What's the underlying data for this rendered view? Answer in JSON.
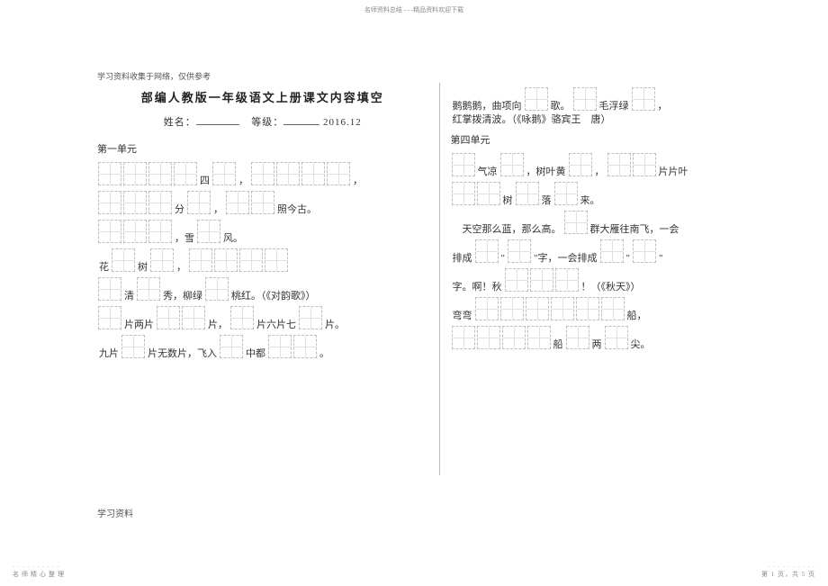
{
  "header": {
    "top_note": "名师资料总结 - - -精品资料欢迎下载"
  },
  "subnote": "学习资料收集于网络，仅供参考",
  "title": "部编人教版一年级语文上册课文内容填空",
  "namebar": {
    "name_label": "姓名：",
    "grade_label": "等级：",
    "date": "2016.12"
  },
  "left": {
    "section": "第一单元",
    "rows": [
      {
        "parts": [
          {
            "t": "box",
            "n": 4
          },
          {
            "t": "txt",
            "v": "四"
          },
          {
            "t": "box",
            "n": 1
          },
          {
            "t": "txt",
            "v": "，"
          },
          {
            "t": "box",
            "n": 4
          },
          {
            "t": "txt",
            "v": "，"
          }
        ]
      },
      {
        "parts": [
          {
            "t": "box",
            "n": 3
          },
          {
            "t": "txt",
            "v": "分"
          },
          {
            "t": "box",
            "n": 1
          },
          {
            "t": "txt",
            "v": "，"
          },
          {
            "t": "box",
            "n": 2
          },
          {
            "t": "txt",
            "v": "照今古。"
          }
        ]
      },
      {
        "parts": [
          {
            "t": "box",
            "n": 3
          },
          {
            "t": "txt",
            "v": "，雪"
          },
          {
            "t": "box",
            "n": 1
          },
          {
            "t": "txt",
            "v": "风。"
          }
        ]
      },
      {
        "parts": [
          {
            "t": "txt",
            "v": "花"
          },
          {
            "t": "box",
            "n": 1
          },
          {
            "t": "txt",
            "v": "树"
          },
          {
            "t": "box",
            "n": 1
          },
          {
            "t": "txt",
            "v": "，"
          },
          {
            "t": "box",
            "n": 4
          }
        ]
      },
      {
        "parts": [
          {
            "t": "box",
            "n": 1
          },
          {
            "t": "txt",
            "v": "清"
          },
          {
            "t": "box",
            "n": 1
          },
          {
            "t": "txt",
            "v": "秀，柳绿"
          },
          {
            "t": "box",
            "n": 1
          },
          {
            "t": "txt",
            "v": "桃红。（《对韵歌》）"
          }
        ]
      },
      {
        "parts": [
          {
            "t": "box",
            "n": 1
          },
          {
            "t": "txt",
            "v": "片两片"
          },
          {
            "t": "box",
            "n": 2
          },
          {
            "t": "txt",
            "v": "片，"
          },
          {
            "t": "box",
            "n": 1
          },
          {
            "t": "txt",
            "v": "片六片七"
          },
          {
            "t": "box",
            "n": 1
          },
          {
            "t": "txt",
            "v": "片。"
          }
        ]
      },
      {
        "parts": [
          {
            "t": "txt",
            "v": "九片"
          },
          {
            "t": "box",
            "n": 1
          },
          {
            "t": "txt",
            "v": "片无数片，飞入"
          },
          {
            "t": "box",
            "n": 1
          },
          {
            "t": "txt",
            "v": "中都"
          },
          {
            "t": "box",
            "n": 2
          },
          {
            "t": "txt",
            "v": "。"
          }
        ]
      }
    ]
  },
  "right": {
    "pre_rows": [
      {
        "parts": [
          {
            "t": "txt",
            "v": "鹅鹅鹅，曲项向"
          },
          {
            "t": "box",
            "n": 1
          },
          {
            "t": "txt",
            "v": "歌。"
          },
          {
            "t": "box",
            "n": 1
          },
          {
            "t": "txt",
            "v": "毛浮绿"
          },
          {
            "t": "box",
            "n": 1
          },
          {
            "t": "txt",
            "v": "，"
          }
        ]
      },
      {
        "parts": [
          {
            "t": "txt",
            "v": "红掌拨清波。（《咏鹅》骆宾王　唐）"
          }
        ]
      }
    ],
    "section": "第四单元",
    "rows": [
      {
        "parts": [
          {
            "t": "box",
            "n": 1
          },
          {
            "t": "txt",
            "v": "气凉"
          },
          {
            "t": "box",
            "n": 1
          },
          {
            "t": "txt",
            "v": "，树叶黄"
          },
          {
            "t": "box",
            "n": 1
          },
          {
            "t": "txt",
            "v": "，"
          },
          {
            "t": "box",
            "n": 2
          },
          {
            "t": "txt",
            "v": "片片叶"
          }
        ]
      },
      {
        "parts": [
          {
            "t": "box",
            "n": 2
          },
          {
            "t": "txt",
            "v": "树"
          },
          {
            "t": "box",
            "n": 1
          },
          {
            "t": "txt",
            "v": "落"
          },
          {
            "t": "box",
            "n": 1
          },
          {
            "t": "txt",
            "v": "来。"
          }
        ]
      },
      {
        "parts": [
          {
            "t": "txt",
            "v": "　天空那么蓝，那么高。"
          },
          {
            "t": "box",
            "n": 1
          },
          {
            "t": "txt",
            "v": "群大雁往南飞，一会"
          }
        ]
      },
      {
        "parts": [
          {
            "t": "txt",
            "v": "排成"
          },
          {
            "t": "box",
            "n": 1
          },
          {
            "t": "txt",
            "v": "\""
          },
          {
            "t": "box",
            "n": 1
          },
          {
            "t": "txt",
            "v": "\"字，一会排成"
          },
          {
            "t": "box",
            "n": 1
          },
          {
            "t": "txt",
            "v": "\""
          },
          {
            "t": "box",
            "n": 1
          },
          {
            "t": "txt",
            "v": "\""
          }
        ]
      },
      {
        "parts": [
          {
            "t": "txt",
            "v": "字。啊！秋"
          },
          {
            "t": "box",
            "n": 3
          },
          {
            "t": "txt",
            "v": "！（《秋天》）"
          }
        ]
      },
      {
        "parts": [
          {
            "t": "txt",
            "v": "弯弯"
          },
          {
            "t": "box",
            "n": 6
          },
          {
            "t": "txt",
            "v": "船，"
          }
        ]
      },
      {
        "parts": [
          {
            "t": "box",
            "n": 4
          },
          {
            "t": "txt",
            "v": "船"
          },
          {
            "t": "box",
            "n": 1
          },
          {
            "t": "txt",
            "v": "两"
          },
          {
            "t": "box",
            "n": 1
          },
          {
            "t": "txt",
            "v": "尖。"
          }
        ]
      }
    ]
  },
  "studymark": "学习资料",
  "footer": {
    "left": "名师精心整理",
    "right": "第 1 页，共 5 页",
    "dots": "- - - - - - - - - -"
  }
}
